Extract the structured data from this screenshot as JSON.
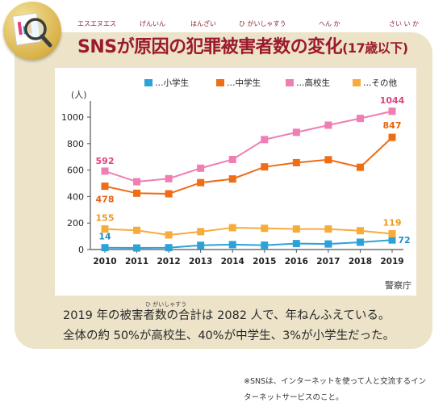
{
  "title": {
    "main": "SNSが原因の犯罪被害者数の変化",
    "sub": "(17歳以下)",
    "ruby_sns": "エスエヌエス",
    "ruby_genin": "げんいん",
    "ruby_hanzai": "はんざい",
    "ruby_higaisha": "ひ がいしゃすう",
    "ruby_henka": "へん か",
    "ruby_sai": "さい い か"
  },
  "colors": {
    "title": "#9b1a2b",
    "card": "#ece3c9",
    "elementary": "#2ba3d8",
    "junior_high": "#ee6d16",
    "high_school": "#ef7eb3",
    "other": "#f6ac3a",
    "junior_high_label": "#e8620c",
    "high_school_label": "#e0407f",
    "other_label": "#e99b1f",
    "elementary_label": "#1d8fc5"
  },
  "badge": {
    "icon": "magnifier-chart-icon"
  },
  "source": "警察庁",
  "description": {
    "line1": "2019 年の被害者数の合計は 2082 人で、年ねんふえている。",
    "line2": "全体の約 50%が高校生、40%が中学生、3%が小学生だった。",
    "ruby": "ひ がいしゃすう"
  },
  "note": {
    "line1": "※SNSは、インターネットを使って人と交流するイン",
    "line2": "ターネットサービスのこと。"
  },
  "chart_data": {
    "type": "line",
    "x": [
      2010,
      2011,
      2012,
      2013,
      2014,
      2015,
      2016,
      2017,
      2018,
      2019
    ],
    "ylabel": "(人)",
    "ylim": [
      0,
      1100
    ],
    "yticks": [
      0,
      200,
      400,
      600,
      800,
      1000
    ],
    "grid": false,
    "legend": "top",
    "series": [
      {
        "name": "…小学生",
        "key": "elementary",
        "values": [
          14,
          12,
          14,
          32,
          37,
          33,
          45,
          42,
          55,
          72
        ]
      },
      {
        "name": "…中学生",
        "key": "junior_high",
        "values": [
          478,
          425,
          421,
          505,
          533,
          624,
          656,
          678,
          621,
          847
        ]
      },
      {
        "name": "…高校生",
        "key": "high_school",
        "values": [
          592,
          512,
          535,
          614,
          680,
          830,
          885,
          939,
          990,
          1044
        ]
      },
      {
        "name": "…その他",
        "key": "other",
        "values": [
          155,
          145,
          110,
          135,
          165,
          160,
          155,
          155,
          142,
          119
        ]
      }
    ],
    "labels": [
      {
        "series": "high_school",
        "index": 0,
        "text": "592"
      },
      {
        "series": "junior_high",
        "index": 0,
        "text": "478"
      },
      {
        "series": "other",
        "index": 0,
        "text": "155"
      },
      {
        "series": "elementary",
        "index": 0,
        "text": "14"
      },
      {
        "series": "high_school",
        "index": 9,
        "text": "1044"
      },
      {
        "series": "junior_high",
        "index": 9,
        "text": "847"
      },
      {
        "series": "other",
        "index": 9,
        "text": "119"
      },
      {
        "series": "elementary",
        "index": 9,
        "text": "72"
      }
    ]
  }
}
